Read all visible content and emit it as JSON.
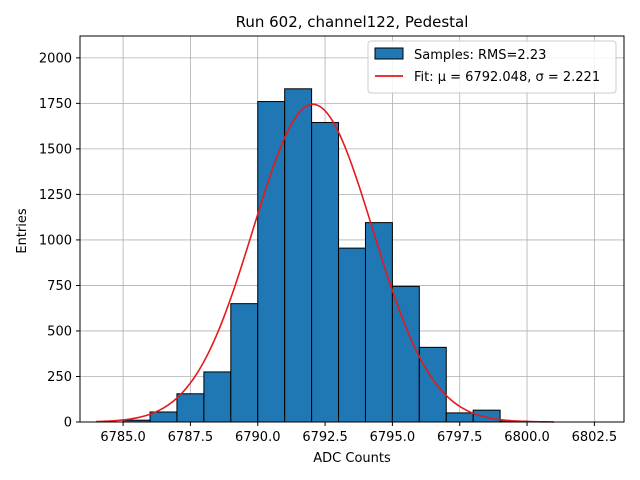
{
  "chart_data": {
    "type": "bar",
    "title": "Run 602, channel122, Pedestal",
    "xlabel": "ADC Counts",
    "ylabel": "Entries",
    "xlim": [
      6783.4,
      6803.6
    ],
    "ylim": [
      0,
      2120
    ],
    "xticks": [
      6785.0,
      6787.5,
      6790.0,
      6792.5,
      6795.0,
      6797.5,
      6800.0,
      6802.5
    ],
    "xtick_labels": [
      "6785.0",
      "6787.5",
      "6790.0",
      "6792.5",
      "6795.0",
      "6797.5",
      "6800.0",
      "6802.5"
    ],
    "yticks": [
      0,
      250,
      500,
      750,
      1000,
      1250,
      1500,
      1750,
      2000
    ],
    "ytick_labels": [
      "0",
      "250",
      "500",
      "750",
      "1000",
      "1250",
      "1500",
      "1750",
      "2000"
    ],
    "grid": true,
    "legend_position": "top-right",
    "histogram": {
      "name": "Samples: RMS=2.23",
      "color": "#1f77b4",
      "edge_color": "#000000",
      "bin_width": 1.0,
      "bin_edges": [
        6785,
        6786,
        6787,
        6788,
        6789,
        6790,
        6791,
        6792,
        6793,
        6794,
        6795,
        6796,
        6797,
        6798,
        6799,
        6800,
        6801,
        6802
      ],
      "counts": [
        10,
        55,
        155,
        275,
        650,
        1760,
        1830,
        1645,
        955,
        1095,
        745,
        410,
        50,
        65,
        5,
        0,
        0
      ]
    },
    "fit": {
      "name": "Fit: μ = 6792.048, σ = 2.221",
      "color": "#e41a1c",
      "mu": 6792.048,
      "sigma": 2.221,
      "amplitude": 1745,
      "x_range": [
        6784.0,
        6801.0
      ]
    }
  }
}
